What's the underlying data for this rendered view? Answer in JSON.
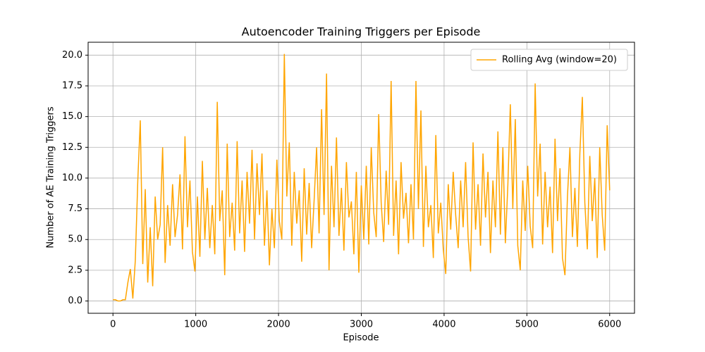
{
  "chart_data": {
    "type": "line",
    "title": "Autoencoder Training Triggers per Episode",
    "xlabel": "Episode",
    "ylabel": "Number of AE Training Triggers",
    "x": [
      0,
      30,
      60,
      90,
      120,
      150,
      180,
      210,
      240,
      270,
      300,
      330,
      360,
      390,
      420,
      450,
      480,
      510,
      540,
      570,
      600,
      630,
      660,
      690,
      720,
      750,
      780,
      810,
      840,
      870,
      900,
      930,
      960,
      990,
      1020,
      1050,
      1080,
      1110,
      1140,
      1170,
      1200,
      1230,
      1260,
      1290,
      1320,
      1350,
      1380,
      1410,
      1440,
      1470,
      1500,
      1530,
      1560,
      1590,
      1620,
      1650,
      1680,
      1710,
      1740,
      1770,
      1800,
      1830,
      1860,
      1890,
      1920,
      1950,
      1980,
      2010,
      2040,
      2070,
      2100,
      2130,
      2160,
      2190,
      2220,
      2250,
      2280,
      2310,
      2340,
      2370,
      2400,
      2430,
      2460,
      2490,
      2520,
      2550,
      2580,
      2610,
      2640,
      2670,
      2700,
      2730,
      2760,
      2790,
      2820,
      2850,
      2880,
      2910,
      2940,
      2970,
      3000,
      3030,
      3060,
      3090,
      3120,
      3150,
      3180,
      3210,
      3240,
      3270,
      3300,
      3330,
      3360,
      3390,
      3420,
      3450,
      3480,
      3510,
      3540,
      3570,
      3600,
      3630,
      3660,
      3690,
      3720,
      3750,
      3780,
      3810,
      3840,
      3870,
      3900,
      3930,
      3960,
      3990,
      4020,
      4050,
      4080,
      4110,
      4140,
      4170,
      4200,
      4230,
      4260,
      4290,
      4320,
      4350,
      4380,
      4410,
      4440,
      4470,
      4500,
      4530,
      4560,
      4590,
      4620,
      4650,
      4680,
      4710,
      4740,
      4770,
      4800,
      4830,
      4860,
      4890,
      4920,
      4950,
      4980,
      5010,
      5040,
      5070,
      5100,
      5130,
      5160,
      5190,
      5220,
      5250,
      5280,
      5310,
      5340,
      5370,
      5400,
      5430,
      5460,
      5490,
      5520,
      5550,
      5580,
      5610,
      5640,
      5670,
      5700,
      5730,
      5760,
      5790,
      5820,
      5850,
      5880,
      5910,
      5940,
      5970,
      6000
    ],
    "series": [
      {
        "name": "Rolling Avg (window=20)",
        "color": "#ffa500",
        "values": [
          0.1,
          0.1,
          0,
          0,
          0.1,
          0.1,
          1.5,
          2.6,
          0.2,
          3.3,
          9.8,
          14.7,
          3,
          9.1,
          1.5,
          6,
          1.2,
          8.5,
          5,
          6.2,
          12.5,
          3.1,
          7.8,
          4.5,
          9.5,
          5.2,
          7,
          10.3,
          4.2,
          13.4,
          6,
          9.8,
          4,
          2.4,
          8.5,
          3.6,
          11.4,
          5,
          9.2,
          4.3,
          7.8,
          3.8,
          16.2,
          6.5,
          9,
          2.1,
          12.8,
          5.2,
          8,
          4.1,
          13,
          5.5,
          9.8,
          4,
          10.5,
          6.3,
          12.3,
          5,
          11.2,
          7,
          12,
          4.5,
          9,
          2.9,
          7.5,
          4.3,
          11.5,
          6.5,
          5,
          20.1,
          8.5,
          12.9,
          4.5,
          10.5,
          6.3,
          9,
          3.2,
          10.8,
          5.4,
          9.6,
          4.3,
          8.2,
          12.5,
          5.5,
          15.6,
          7,
          18.5,
          2.5,
          11,
          6,
          13.3,
          5.3,
          9.2,
          4.1,
          11.3,
          6.8,
          8.1,
          3.8,
          10.5,
          2.3,
          9.4,
          5,
          11,
          4.6,
          12.5,
          7.2,
          5.2,
          15.2,
          8,
          4.8,
          10.6,
          6.2,
          17.9,
          5.3,
          9.8,
          3.8,
          11.3,
          6.7,
          8.8,
          4.7,
          9.5,
          5,
          17.9,
          7.5,
          15.5,
          4.4,
          11,
          6,
          7.8,
          3.5,
          13.5,
          5.5,
          8,
          4.2,
          2.2,
          9.5,
          5.8,
          10.5,
          7,
          4.3,
          9.8,
          6,
          11.3,
          5.2,
          2.4,
          12.9,
          5.8,
          9.5,
          4.5,
          12,
          6.8,
          10.5,
          3.9,
          9.8,
          6,
          13.8,
          5.4,
          12.5,
          4.7,
          9.4,
          16,
          7.5,
          14.8,
          4.5,
          2.5,
          9.8,
          5.7,
          11,
          6.1,
          4.3,
          17.7,
          8.5,
          12.8,
          4.6,
          10.5,
          6,
          9.3,
          3.9,
          13.2,
          6.5,
          10.8,
          3.5,
          2.1,
          8.5,
          12.5,
          5.2,
          9.2,
          4.4,
          12,
          16.6,
          8,
          4.2,
          11.8,
          6.5,
          10,
          3.5,
          12.5,
          7,
          4.1,
          14.3,
          9
        ]
      }
    ],
    "xlim": [
      -300,
      6300
    ],
    "xticks": [
      0,
      1000,
      2000,
      3000,
      4000,
      5000,
      6000
    ],
    "ylim": [
      -1,
      21.05
    ],
    "yticks": [
      {
        "value": 0,
        "label": "0.0"
      },
      {
        "value": 2.5,
        "label": "2.5"
      },
      {
        "value": 5,
        "label": "5.0"
      },
      {
        "value": 7.5,
        "label": "7.5"
      },
      {
        "value": 10,
        "label": "10.0"
      },
      {
        "value": 12.5,
        "label": "12.5"
      },
      {
        "value": 15,
        "label": "15.0"
      },
      {
        "value": 17.5,
        "label": "17.5"
      },
      {
        "value": 20,
        "label": "20.0"
      }
    ],
    "grid": true,
    "legend": "upper right"
  }
}
